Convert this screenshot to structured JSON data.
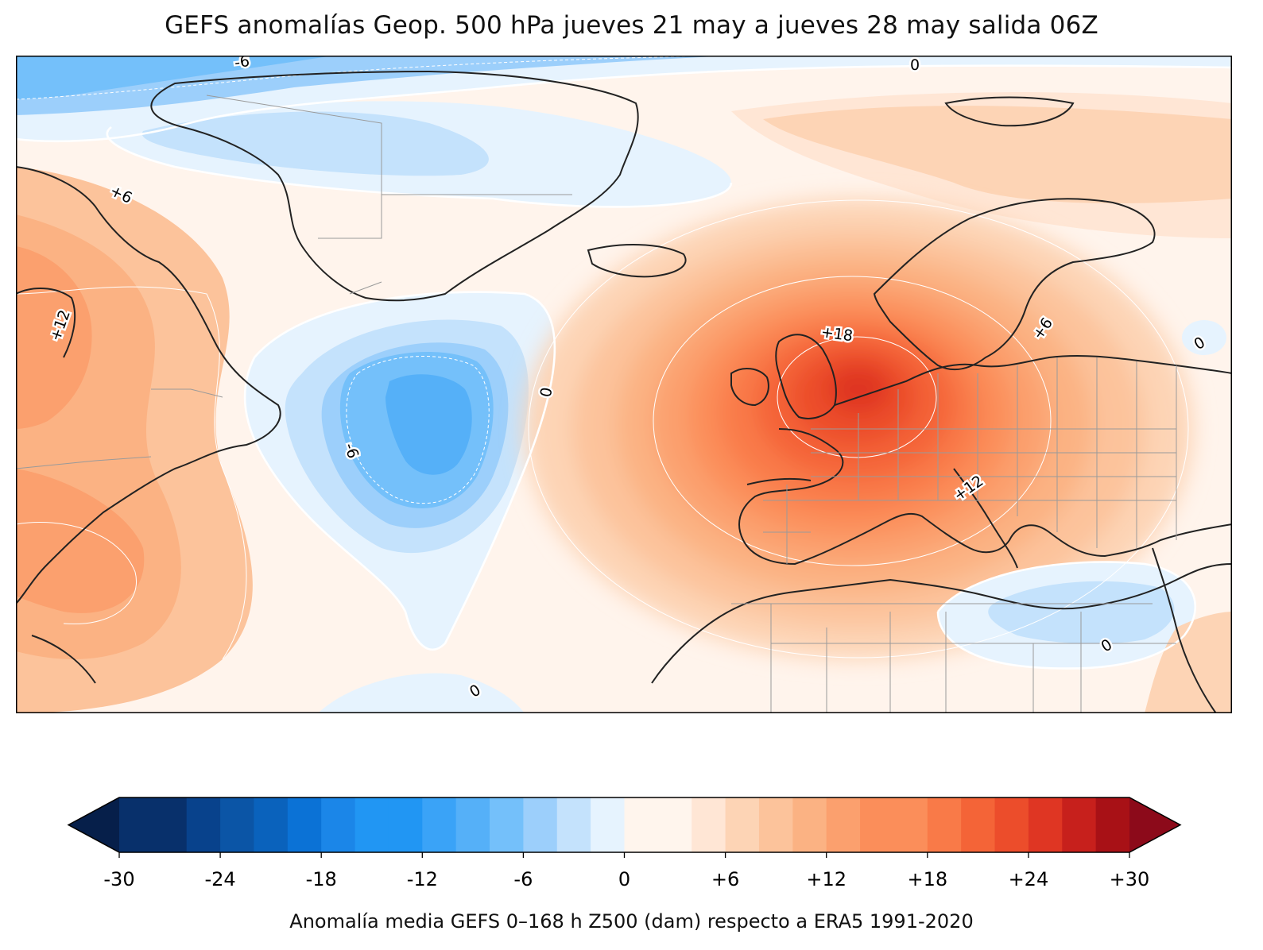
{
  "title": "GEFS anomalías Geop. 500 hPa jueves 21 may a jueves 28 may salida 06Z",
  "colorbar": {
    "label": "Anomalía media GEFS 0–168 h Z500 (dam) respecto a ERA5 1991-2020",
    "ticks": [
      "-30",
      "-24",
      "-18",
      "-12",
      "-6",
      "0",
      "+6",
      "+12",
      "+18",
      "+24",
      "+30"
    ],
    "min": -30,
    "max": 30,
    "step": 2,
    "colors": [
      "#08306b",
      "#08428c",
      "#0b55a6",
      "#0a62bc",
      "#0b72d6",
      "#1b86e8",
      "#2196f3",
      "#3aa3f7",
      "#55b0f8",
      "#74c0fa",
      "#9ccffb",
      "#c4e2fc",
      "#e6f3fe",
      "#fff5ed",
      "#ffe6d5",
      "#fdd4b5",
      "#fcc39b",
      "#fbb283",
      "#fba06e",
      "#fb8e5a",
      "#f97a48",
      "#f46437",
      "#ec4d2b",
      "#df3623",
      "#c7201c",
      "#a81116"
    ],
    "under_color": "#061f4a",
    "over_color": "#8c0a1a"
  },
  "map_labels": {
    "contour_minus6_top": "-6",
    "contour_zero_top": "0",
    "contour_plus6_west": "+6",
    "contour_plus12_west": "+12",
    "contour_zero_mid": "0",
    "contour_minus6_atlantic": "-6",
    "contour_plus18_europe": "+18",
    "contour_plus12_italy": "+12",
    "contour_plus6_baltic": "+6",
    "contour_zero_east": "0",
    "contour_zero_egypt": "0",
    "contour_zero_south": "0"
  }
}
